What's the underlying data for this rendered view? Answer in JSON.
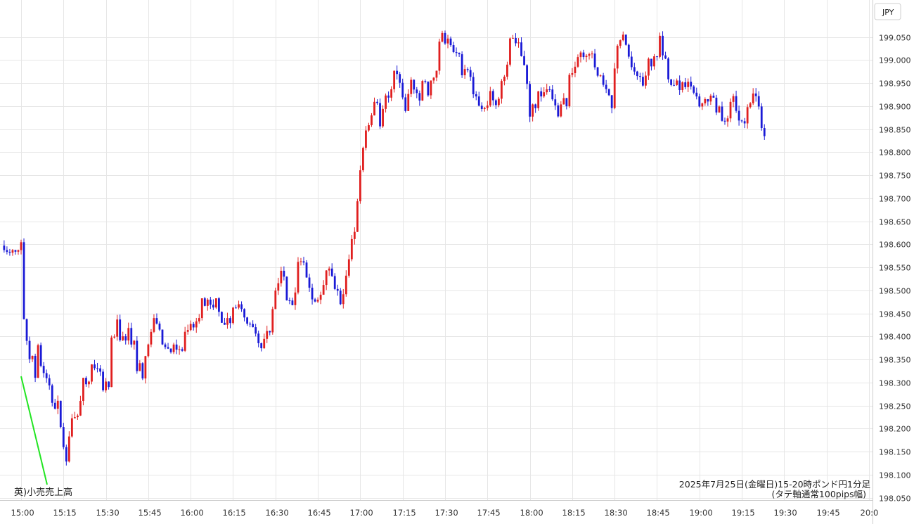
{
  "currency_label": "JPY",
  "note": {
    "label": "英)小売売上高"
  },
  "caption": {
    "line1": "2025年7月25日(金曜日)15-20時ポンド円1分足",
    "line2": "(タテ軸通常100pips幅)"
  },
  "colors": {
    "up": "#e01f1f",
    "down": "#1a1ad6",
    "note_line": "#22e522"
  },
  "chart_data": {
    "type": "candlestick",
    "title": "",
    "ylim": [
      198.05,
      199.075
    ],
    "y_ticks": [
      "198.050",
      "198.100",
      "198.150",
      "198.200",
      "198.250",
      "198.300",
      "198.350",
      "198.400",
      "198.450",
      "198.500",
      "198.550",
      "198.600",
      "198.650",
      "198.700",
      "198.750",
      "198.800",
      "198.850",
      "198.900",
      "198.950",
      "199.000",
      "199.050"
    ],
    "x_ticks": [
      "15:00",
      "15:15",
      "15:30",
      "15:45",
      "16:00",
      "16:15",
      "16:30",
      "16:45",
      "17:00",
      "17:15",
      "17:30",
      "17:45",
      "18:00",
      "18:15",
      "18:30",
      "18:45",
      "19:00",
      "19:15",
      "19:30",
      "19:45",
      "20:0"
    ],
    "interval_minutes": 1,
    "grid": true,
    "close_path": [
      [
        0,
        198.595
      ],
      [
        1,
        198.45
      ],
      [
        2,
        198.38
      ],
      [
        3,
        198.34
      ],
      [
        4,
        198.36
      ],
      [
        5,
        198.3
      ],
      [
        6,
        198.37
      ],
      [
        7,
        198.33
      ],
      [
        8,
        198.33
      ],
      [
        9,
        198.3
      ],
      [
        10,
        198.3
      ],
      [
        11,
        198.26
      ],
      [
        12,
        198.24
      ],
      [
        13,
        198.25
      ],
      [
        14,
        198.2
      ],
      [
        15,
        198.17
      ],
      [
        16,
        198.13
      ],
      [
        17,
        198.17
      ],
      [
        18,
        198.21
      ],
      [
        19,
        198.22
      ],
      [
        20,
        198.24
      ],
      [
        21,
        198.27
      ],
      [
        22,
        198.3
      ],
      [
        23,
        198.3
      ],
      [
        24,
        198.31
      ],
      [
        25,
        198.33
      ],
      [
        26,
        198.34
      ],
      [
        27,
        198.33
      ],
      [
        28,
        198.31
      ],
      [
        29,
        198.29
      ],
      [
        30,
        198.3
      ],
      [
        31,
        198.29
      ],
      [
        32,
        198.4
      ],
      [
        33,
        198.41
      ],
      [
        34,
        198.44
      ],
      [
        35,
        198.39
      ],
      [
        36,
        198.39
      ],
      [
        37,
        198.38
      ],
      [
        38,
        198.41
      ],
      [
        39,
        198.37
      ],
      [
        40,
        198.38
      ],
      [
        41,
        198.33
      ],
      [
        42,
        198.34
      ],
      [
        43,
        198.32
      ],
      [
        44,
        198.35
      ],
      [
        45,
        198.38
      ],
      [
        46,
        198.42
      ],
      [
        47,
        198.43
      ],
      [
        48,
        198.44
      ],
      [
        49,
        198.41
      ],
      [
        50,
        198.39
      ],
      [
        51,
        198.38
      ],
      [
        52,
        198.37
      ],
      [
        53,
        198.36
      ],
      [
        54,
        198.37
      ],
      [
        55,
        198.38
      ],
      [
        56,
        198.38
      ],
      [
        57,
        198.38
      ],
      [
        58,
        198.4
      ],
      [
        59,
        198.42
      ],
      [
        60,
        198.44
      ],
      [
        61,
        198.42
      ],
      [
        62,
        198.43
      ],
      [
        63,
        198.44
      ],
      [
        64,
        198.48
      ],
      [
        65,
        198.47
      ],
      [
        66,
        198.48
      ],
      [
        67,
        198.46
      ],
      [
        68,
        198.47
      ],
      [
        69,
        198.48
      ],
      [
        70,
        198.46
      ],
      [
        71,
        198.43
      ],
      [
        72,
        198.42
      ],
      [
        73,
        198.45
      ],
      [
        74,
        198.44
      ],
      [
        75,
        198.47
      ],
      [
        76,
        198.45
      ],
      [
        77,
        198.47
      ],
      [
        78,
        198.45
      ],
      [
        79,
        198.44
      ],
      [
        80,
        198.44
      ],
      [
        81,
        198.44
      ],
      [
        82,
        198.41
      ],
      [
        83,
        198.4
      ],
      [
        84,
        198.38
      ],
      [
        85,
        198.37
      ],
      [
        86,
        198.39
      ],
      [
        87,
        198.42
      ],
      [
        88,
        198.41
      ],
      [
        89,
        198.47
      ],
      [
        90,
        198.5
      ],
      [
        91,
        198.52
      ],
      [
        92,
        198.53
      ],
      [
        93,
        198.52
      ],
      [
        94,
        198.49
      ],
      [
        95,
        198.47
      ],
      [
        96,
        198.47
      ],
      [
        97,
        198.5
      ],
      [
        98,
        198.55
      ],
      [
        99,
        198.57
      ],
      [
        100,
        198.56
      ],
      [
        101,
        198.53
      ],
      [
        102,
        198.51
      ],
      [
        103,
        198.49
      ],
      [
        104,
        198.48
      ],
      [
        105,
        198.47
      ],
      [
        106,
        198.49
      ],
      [
        107,
        198.52
      ],
      [
        108,
        198.55
      ],
      [
        109,
        198.56
      ],
      [
        110,
        198.53
      ],
      [
        111,
        198.51
      ],
      [
        112,
        198.5
      ],
      [
        113,
        198.48
      ],
      [
        114,
        198.5
      ],
      [
        115,
        198.54
      ],
      [
        116,
        198.57
      ],
      [
        117,
        198.6
      ],
      [
        118,
        198.63
      ],
      [
        119,
        198.69
      ],
      [
        120,
        198.75
      ],
      [
        121,
        198.81
      ],
      [
        122,
        198.86
      ],
      [
        123,
        198.85
      ],
      [
        124,
        198.89
      ],
      [
        125,
        198.91
      ],
      [
        126,
        198.9
      ],
      [
        127,
        198.86
      ],
      [
        128,
        198.89
      ],
      [
        129,
        198.91
      ],
      [
        130,
        198.93
      ],
      [
        131,
        198.95
      ],
      [
        132,
        198.97
      ],
      [
        133,
        198.96
      ],
      [
        134,
        198.95
      ],
      [
        135,
        198.92
      ],
      [
        136,
        198.9
      ],
      [
        137,
        198.93
      ],
      [
        138,
        198.96
      ],
      [
        139,
        198.94
      ],
      [
        140,
        198.92
      ],
      [
        141,
        198.91
      ],
      [
        142,
        198.96
      ],
      [
        143,
        198.94
      ],
      [
        144,
        198.93
      ],
      [
        145,
        198.95
      ],
      [
        146,
        198.96
      ],
      [
        147,
        198.99
      ],
      [
        148,
        199.03
      ],
      [
        149,
        199.05
      ],
      [
        150,
        199.04
      ],
      [
        151,
        199.06
      ],
      [
        152,
        199.04
      ],
      [
        153,
        199.03
      ],
      [
        154,
        199.02
      ],
      [
        155,
        199.0
      ],
      [
        156,
        198.98
      ],
      [
        157,
        198.99
      ],
      [
        158,
        198.97
      ],
      [
        159,
        198.95
      ],
      [
        160,
        198.93
      ],
      [
        161,
        198.92
      ],
      [
        162,
        198.9
      ],
      [
        163,
        198.88
      ],
      [
        164,
        198.89
      ],
      [
        165,
        198.91
      ],
      [
        166,
        198.93
      ],
      [
        167,
        198.92
      ],
      [
        168,
        198.9
      ],
      [
        169,
        198.92
      ],
      [
        170,
        198.95
      ],
      [
        171,
        198.97
      ],
      [
        172,
        199.0
      ],
      [
        173,
        199.04
      ],
      [
        174,
        199.06
      ],
      [
        175,
        199.05
      ],
      [
        176,
        199.03
      ],
      [
        177,
        199.01
      ],
      [
        178,
        199.0
      ],
      [
        179,
        198.95
      ],
      [
        180,
        198.88
      ],
      [
        181,
        198.89
      ],
      [
        182,
        198.9
      ],
      [
        183,
        198.92
      ],
      [
        184,
        198.93
      ],
      [
        185,
        198.92
      ],
      [
        186,
        198.94
      ],
      [
        187,
        198.93
      ],
      [
        188,
        198.92
      ],
      [
        189,
        198.9
      ],
      [
        190,
        198.89
      ],
      [
        191,
        198.91
      ],
      [
        192,
        198.92
      ],
      [
        193,
        198.91
      ],
      [
        194,
        198.96
      ],
      [
        195,
        198.98
      ],
      [
        196,
        198.99
      ],
      [
        197,
        199.02
      ],
      [
        198,
        199.01
      ],
      [
        199,
        199.01
      ],
      [
        200,
        199.0
      ],
      [
        201,
        199.02
      ],
      [
        202,
        199.01
      ],
      [
        203,
        198.98
      ],
      [
        204,
        198.97
      ],
      [
        205,
        198.96
      ],
      [
        206,
        198.95
      ],
      [
        207,
        198.94
      ],
      [
        208,
        198.92
      ],
      [
        209,
        198.9
      ],
      [
        210,
        198.97
      ],
      [
        211,
        199.02
      ],
      [
        212,
        199.05
      ],
      [
        213,
        199.06
      ],
      [
        214,
        199.03
      ],
      [
        215,
        199.0
      ],
      [
        216,
        198.99
      ],
      [
        217,
        198.98
      ],
      [
        218,
        198.97
      ],
      [
        219,
        198.96
      ],
      [
        220,
        198.95
      ],
      [
        221,
        198.96
      ],
      [
        222,
        198.99
      ],
      [
        223,
        199.0
      ],
      [
        224,
        199.01
      ],
      [
        225,
        199.02
      ],
      [
        226,
        199.04
      ],
      [
        227,
        199.02
      ],
      [
        228,
        198.99
      ],
      [
        229,
        198.97
      ],
      [
        230,
        198.95
      ],
      [
        231,
        198.94
      ],
      [
        232,
        198.95
      ],
      [
        233,
        198.93
      ],
      [
        234,
        198.94
      ],
      [
        235,
        198.95
      ],
      [
        236,
        198.96
      ],
      [
        237,
        198.95
      ],
      [
        238,
        198.93
      ],
      [
        239,
        198.91
      ],
      [
        240,
        198.9
      ],
      [
        241,
        198.91
      ],
      [
        242,
        198.92
      ],
      [
        243,
        198.91
      ],
      [
        244,
        198.92
      ],
      [
        245,
        198.91
      ],
      [
        246,
        198.9
      ],
      [
        247,
        198.89
      ],
      [
        248,
        198.88
      ],
      [
        249,
        198.87
      ],
      [
        250,
        198.88
      ],
      [
        251,
        198.9
      ],
      [
        252,
        198.91
      ],
      [
        253,
        198.89
      ],
      [
        254,
        198.88
      ],
      [
        255,
        198.86
      ],
      [
        256,
        198.87
      ],
      [
        257,
        198.89
      ],
      [
        258,
        198.9
      ],
      [
        259,
        198.92
      ],
      [
        260,
        198.93
      ],
      [
        261,
        198.9
      ],
      [
        262,
        198.86
      ],
      [
        263,
        198.83
      ]
    ]
  }
}
